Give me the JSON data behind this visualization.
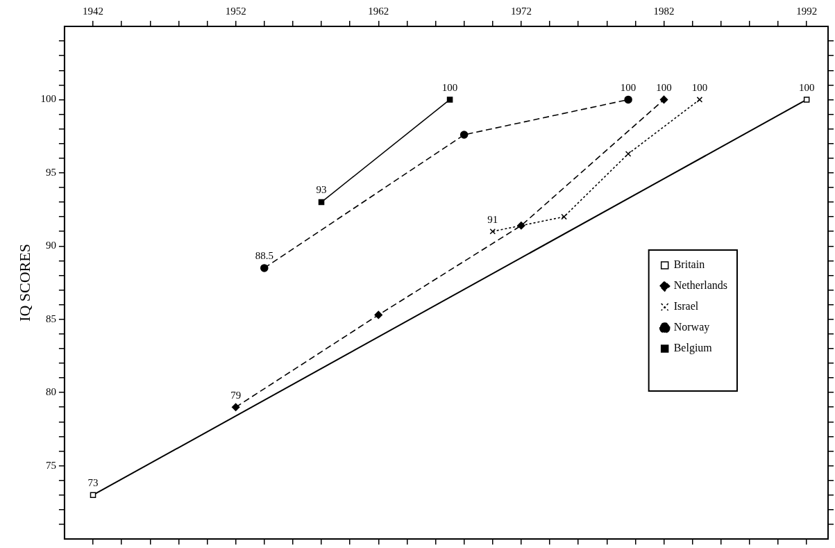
{
  "chart_data": {
    "type": "line",
    "ylabel": "IQ SCORES",
    "xlim": [
      1940,
      1993.5
    ],
    "ylim": [
      70,
      105
    ],
    "xticks": [
      {
        "value": 1942,
        "label": "1942"
      },
      {
        "value": 1944,
        "label": null
      },
      {
        "value": 1946,
        "label": null
      },
      {
        "value": 1948,
        "label": null
      },
      {
        "value": 1950,
        "label": null
      },
      {
        "value": 1952,
        "label": "1952"
      },
      {
        "value": 1954,
        "label": null
      },
      {
        "value": 1956,
        "label": null
      },
      {
        "value": 1958,
        "label": null
      },
      {
        "value": 1960,
        "label": null
      },
      {
        "value": 1962,
        "label": "1962"
      },
      {
        "value": 1964,
        "label": null
      },
      {
        "value": 1966,
        "label": null
      },
      {
        "value": 1968,
        "label": null
      },
      {
        "value": 1970,
        "label": null
      },
      {
        "value": 1972,
        "label": "1972"
      },
      {
        "value": 1974,
        "label": null
      },
      {
        "value": 1976,
        "label": null
      },
      {
        "value": 1978,
        "label": null
      },
      {
        "value": 1980,
        "label": null
      },
      {
        "value": 1982,
        "label": "1982"
      },
      {
        "value": 1984,
        "label": null
      },
      {
        "value": 1986,
        "label": null
      },
      {
        "value": 1988,
        "label": null
      },
      {
        "value": 1990,
        "label": null
      },
      {
        "value": 1992,
        "label": "1992"
      }
    ],
    "yticks": [
      {
        "value": 71,
        "label": null
      },
      {
        "value": 72,
        "label": null
      },
      {
        "value": 73,
        "label": null
      },
      {
        "value": 74,
        "label": null
      },
      75,
      {
        "value": 76,
        "label": null
      },
      {
        "value": 77,
        "label": null
      },
      {
        "value": 78,
        "label": null
      },
      {
        "value": 79,
        "label": null
      },
      80,
      {
        "value": 81,
        "label": null
      },
      {
        "value": 82,
        "label": null
      },
      {
        "value": 83,
        "label": null
      },
      {
        "value": 84,
        "label": null
      },
      85,
      {
        "value": 86,
        "label": null
      },
      {
        "value": 87,
        "label": null
      },
      {
        "value": 88,
        "label": null
      },
      {
        "value": 89,
        "label": null
      },
      90,
      {
        "value": 91,
        "label": null
      },
      {
        "value": 92,
        "label": null
      },
      {
        "value": 93,
        "label": null
      },
      {
        "value": 94,
        "label": null
      },
      95,
      {
        "value": 96,
        "label": null
      },
      {
        "value": 97,
        "label": null
      },
      {
        "value": 98,
        "label": null
      },
      {
        "value": 99,
        "label": null
      },
      100,
      {
        "value": 101,
        "label": null
      },
      {
        "value": 102,
        "label": null
      },
      {
        "value": 103,
        "label": null
      },
      {
        "value": 104,
        "label": null
      }
    ],
    "grid": false,
    "legend": "right",
    "series": [
      {
        "name": "Britain",
        "color": "#000000",
        "marker": "square",
        "line_style": "solid",
        "x": [
          1942,
          1992
        ],
        "values": [
          73,
          100
        ],
        "value_labels": [
          "73",
          "100"
        ]
      },
      {
        "name": "Netherlands",
        "color": "#000000",
        "marker": "diamond",
        "line_style": "dashed",
        "x": [
          1952,
          1962,
          1972,
          1982
        ],
        "values": [
          79,
          85.3,
          91.4,
          100
        ],
        "value_labels": [
          "79",
          null,
          null,
          "100"
        ]
      },
      {
        "name": "Israel",
        "color": "#000000",
        "marker": "cross",
        "line_style": "dotted",
        "x": [
          1970,
          1975,
          1979.5,
          1984.5
        ],
        "values": [
          91,
          92,
          96.3,
          100
        ],
        "value_labels": [
          "91",
          null,
          null,
          "100"
        ]
      },
      {
        "name": "Norway",
        "color": "#000000",
        "marker": "circle",
        "line_style": "dashed",
        "x": [
          1954,
          1968,
          1979.5
        ],
        "values": [
          88.5,
          97.6,
          100
        ],
        "value_labels": [
          "88.5",
          null,
          "100"
        ]
      },
      {
        "name": "Belgium",
        "color": "#000000",
        "marker": "square",
        "line_style": "solid",
        "x": [
          1958,
          1967
        ],
        "values": [
          93,
          100
        ],
        "value_labels": [
          "93",
          "100"
        ]
      }
    ]
  }
}
